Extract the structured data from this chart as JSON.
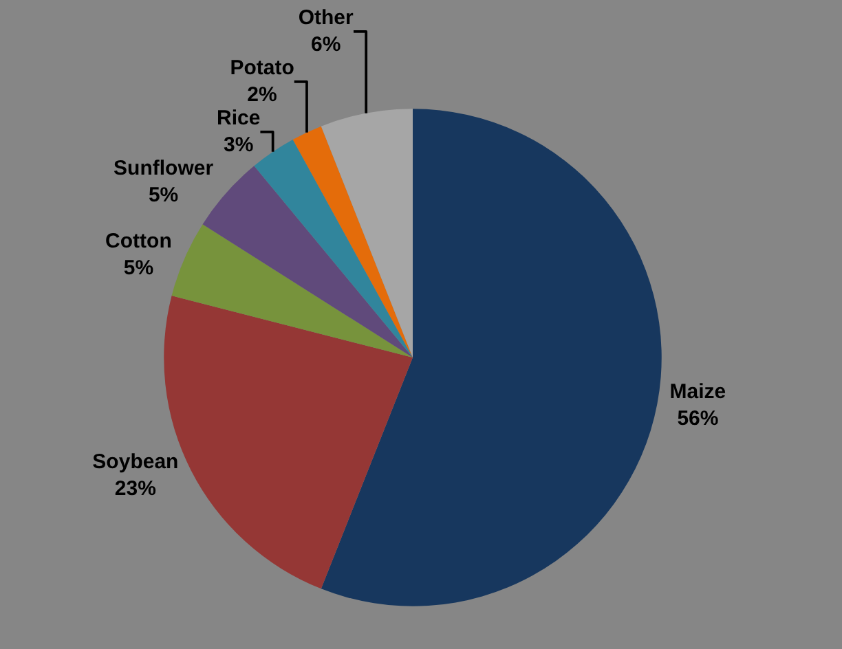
{
  "chart_data": {
    "type": "pie",
    "categories": [
      "Maize",
      "Soybean",
      "Cotton",
      "Sunflower",
      "Rice",
      "Potato",
      "Other"
    ],
    "values": [
      56,
      23,
      5,
      5,
      3,
      2,
      6
    ],
    "colors": [
      "#17375e",
      "#953735",
      "#77933c",
      "#604a7b",
      "#31859c",
      "#e46c0a",
      "#a6a6a6"
    ],
    "value_labels": [
      "56%",
      "23%",
      "5%",
      "5%",
      "3%",
      "2%",
      "6%"
    ],
    "legend": false
  }
}
